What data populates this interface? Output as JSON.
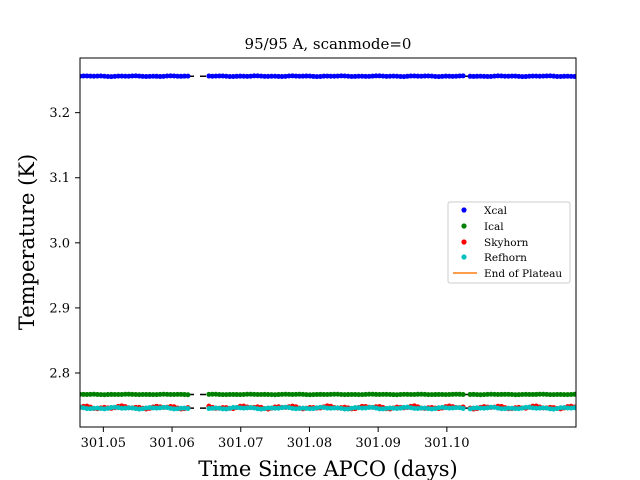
{
  "chart_data": {
    "type": "scatter",
    "title": "95/95 A, scanmode=0",
    "xlabel": "Time Since APCO (days)",
    "ylabel": "Temperature (K)",
    "xlim": [
      301.0466,
      301.1188
    ],
    "ylim": [
      2.717,
      3.284
    ],
    "xticks": [
      301.05,
      301.06,
      301.07,
      301.08,
      301.09,
      301.1
    ],
    "xtick_labels": [
      "301.05",
      "301.06",
      "301.07",
      "301.08",
      "301.09",
      "301.10"
    ],
    "yticks": [
      2.8,
      2.9,
      3.0,
      3.1,
      3.2
    ],
    "ytick_labels": [
      "2.8",
      "2.9",
      "3.0",
      "3.1",
      "3.2"
    ],
    "grid": false,
    "legend_position": "center-right",
    "sampling": {
      "x_start": 301.0466,
      "x_step": 0.000507
    },
    "gaps": [
      [
        301.0624,
        301.065
      ],
      [
        301.1024,
        301.103
      ]
    ],
    "series": [
      {
        "name": "Xcal",
        "color": "#0000ff",
        "base": 3.256,
        "amp": 0.0006
      },
      {
        "name": "Ical",
        "color": "#008000",
        "base": 2.767,
        "amp": 0.0004
      },
      {
        "name": "Skyhorn",
        "color": "#ff0000",
        "base": 2.747,
        "amp": 0.0025
      },
      {
        "name": "Refhorn",
        "color": "#00bfbf",
        "base": 2.746,
        "amp": 0.0015
      }
    ],
    "reference_lines": [
      {
        "y": 2.767,
        "style": "dashed",
        "color": "#000000"
      },
      {
        "y": 2.746,
        "style": "dashed",
        "color": "#000000"
      },
      {
        "y": 3.256,
        "style": "dashed",
        "color": "#000000"
      }
    ],
    "end_of_plateau": {
      "name": "End of Plateau",
      "color": "#ff7f0e"
    }
  }
}
